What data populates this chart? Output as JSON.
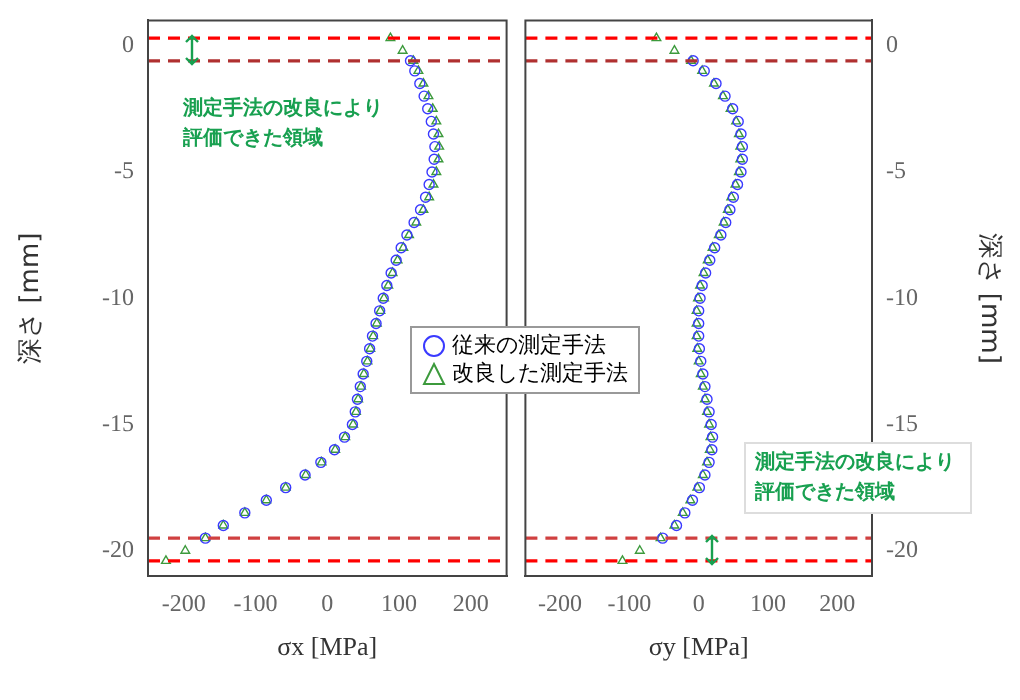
{
  "chart_data": [
    {
      "type": "scatter",
      "xlabel": "σx [MPa]",
      "ylabel": "深さ [mm]",
      "xlim": [
        -250,
        250
      ],
      "xticks": [
        -200,
        -100,
        0,
        100,
        200
      ],
      "ylim": [
        -21,
        1
      ],
      "yticks": [
        0,
        -5,
        -10,
        -15,
        -20
      ],
      "grid": false,
      "legend": "right",
      "annotations": [
        "測定手法の改良により評価できた領域"
      ],
      "ref_lines": [
        {
          "axis": "y",
          "value": 0.3,
          "color": "#ff0000",
          "line_style": "dashed"
        },
        {
          "axis": "y",
          "value": -0.6,
          "color": "#b03030",
          "line_style": "dashed"
        },
        {
          "axis": "y",
          "value": -19.5,
          "color": "#d04040",
          "line_style": "dashed"
        },
        {
          "axis": "y",
          "value": -20.4,
          "color": "#ff0000",
          "line_style": "dashed"
        }
      ],
      "series": [
        {
          "name": "従来の測定手法",
          "color": "#3a3aff",
          "marker": "circle",
          "x": [
            116,
            122,
            129,
            135,
            140,
            145,
            148,
            150,
            149,
            146,
            142,
            137,
            130,
            121,
            111,
            103,
            96,
            89,
            83,
            78,
            73,
            68,
            63,
            59,
            55,
            50,
            46,
            42,
            39,
            35,
            24,
            10,
            -9,
            -31,
            -58,
            -85,
            -115,
            -145,
            -170
          ],
          "values": [
            -0.6,
            -1,
            -1.5,
            -2,
            -2.5,
            -3,
            -3.5,
            -4,
            -4.5,
            -5,
            -5.5,
            -6,
            -6.5,
            -7,
            -7.5,
            -8,
            -8.5,
            -9,
            -9.5,
            -10,
            -10.5,
            -11,
            -11.5,
            -12,
            -12.5,
            -13,
            -13.5,
            -14,
            -14.5,
            -15,
            -15.5,
            -16,
            -16.5,
            -17,
            -17.5,
            -18,
            -18.5,
            -19,
            -19.5
          ]
        },
        {
          "name": "改良した測定手法",
          "color": "#3c9a3c",
          "marker": "triangle",
          "x": [
            88,
            105,
            120,
            127,
            134,
            141,
            147,
            152,
            155,
            156,
            155,
            152,
            148,
            142,
            134,
            124,
            114,
            106,
            98,
            91,
            85,
            79,
            74,
            69,
            64,
            60,
            56,
            51,
            47,
            43,
            40,
            36,
            25,
            11,
            -8,
            -30,
            -58,
            -85,
            -115,
            -145,
            -170,
            -198,
            -225
          ],
          "values": [
            0.3,
            -0.2,
            -0.6,
            -1,
            -1.5,
            -2,
            -2.5,
            -3,
            -3.5,
            -4,
            -4.5,
            -5,
            -5.5,
            -6,
            -6.5,
            -7,
            -7.5,
            -8,
            -8.5,
            -9,
            -9.5,
            -10,
            -10.5,
            -11,
            -11.5,
            -12,
            -12.5,
            -13,
            -13.5,
            -14,
            -14.5,
            -15,
            -15.5,
            -16,
            -16.5,
            -17,
            -17.5,
            -18,
            -18.5,
            -19,
            -19.5,
            -20,
            -20.4
          ]
        }
      ]
    },
    {
      "type": "scatter",
      "xlabel": "σy [MPa]",
      "ylabel": "深さ [mm]",
      "xlim": [
        -250,
        250
      ],
      "xticks": [
        -200,
        -100,
        0,
        100,
        200
      ],
      "ylim": [
        -21,
        1
      ],
      "yticks": [
        0,
        -5,
        -10,
        -15,
        -20
      ],
      "grid": false,
      "annotations": [
        "測定手法の改良により評価できた領域"
      ],
      "ref_lines": [
        {
          "axis": "y",
          "value": 0.3,
          "color": "#ff0000",
          "line_style": "dashed"
        },
        {
          "axis": "y",
          "value": -0.6,
          "color": "#b03030",
          "line_style": "dashed"
        },
        {
          "axis": "y",
          "value": -19.5,
          "color": "#d04040",
          "line_style": "dashed"
        },
        {
          "axis": "y",
          "value": -20.4,
          "color": "#ff0000",
          "line_style": "dashed"
        }
      ],
      "series": [
        {
          "color": "#3a3aff",
          "marker": "circle",
          "x": [
            -8,
            8,
            25,
            38,
            49,
            57,
            61,
            63,
            63,
            61,
            56,
            50,
            45,
            39,
            32,
            23,
            16,
            10,
            5,
            2,
            0,
            0,
            0,
            1,
            3,
            6,
            9,
            12,
            15,
            18,
            20,
            19,
            15,
            9,
            1,
            -9,
            -20,
            -32,
            -52
          ],
          "values": [
            -0.6,
            -1,
            -1.5,
            -2,
            -2.5,
            -3,
            -3.5,
            -4,
            -4.5,
            -5,
            -5.5,
            -6,
            -6.5,
            -7,
            -7.5,
            -8,
            -8.5,
            -9,
            -9.5,
            -10,
            -10.5,
            -11,
            -11.5,
            -12,
            -12.5,
            -13,
            -13.5,
            -14,
            -14.5,
            -15,
            -15.5,
            -16,
            -16.5,
            -17,
            -17.5,
            -18,
            -18.5,
            -19,
            -19.5
          ]
        },
        {
          "color": "#3c9a3c",
          "marker": "triangle",
          "x": [
            -61,
            -35,
            -11,
            5,
            22,
            35,
            46,
            54,
            58,
            60,
            60,
            58,
            53,
            47,
            42,
            36,
            29,
            20,
            13,
            7,
            2,
            -1,
            -3,
            -3,
            -3,
            -2,
            0,
            3,
            6,
            9,
            12,
            15,
            17,
            16,
            12,
            6,
            -2,
            -12,
            -23,
            -35,
            -55,
            -85,
            -110
          ],
          "values": [
            0.3,
            -0.2,
            -0.6,
            -1,
            -1.5,
            -2,
            -2.5,
            -3,
            -3.5,
            -4,
            -4.5,
            -5,
            -5.5,
            -6,
            -6.5,
            -7,
            -7.5,
            -8,
            -8.5,
            -9,
            -9.5,
            -10,
            -10.5,
            -11,
            -11.5,
            -12,
            -12.5,
            -13,
            -13.5,
            -14,
            -14.5,
            -15,
            -15.5,
            -16,
            -16.5,
            -17,
            -17.5,
            -18,
            -18.5,
            -19,
            -19.5,
            -20,
            -20.4
          ]
        }
      ]
    }
  ]
}
